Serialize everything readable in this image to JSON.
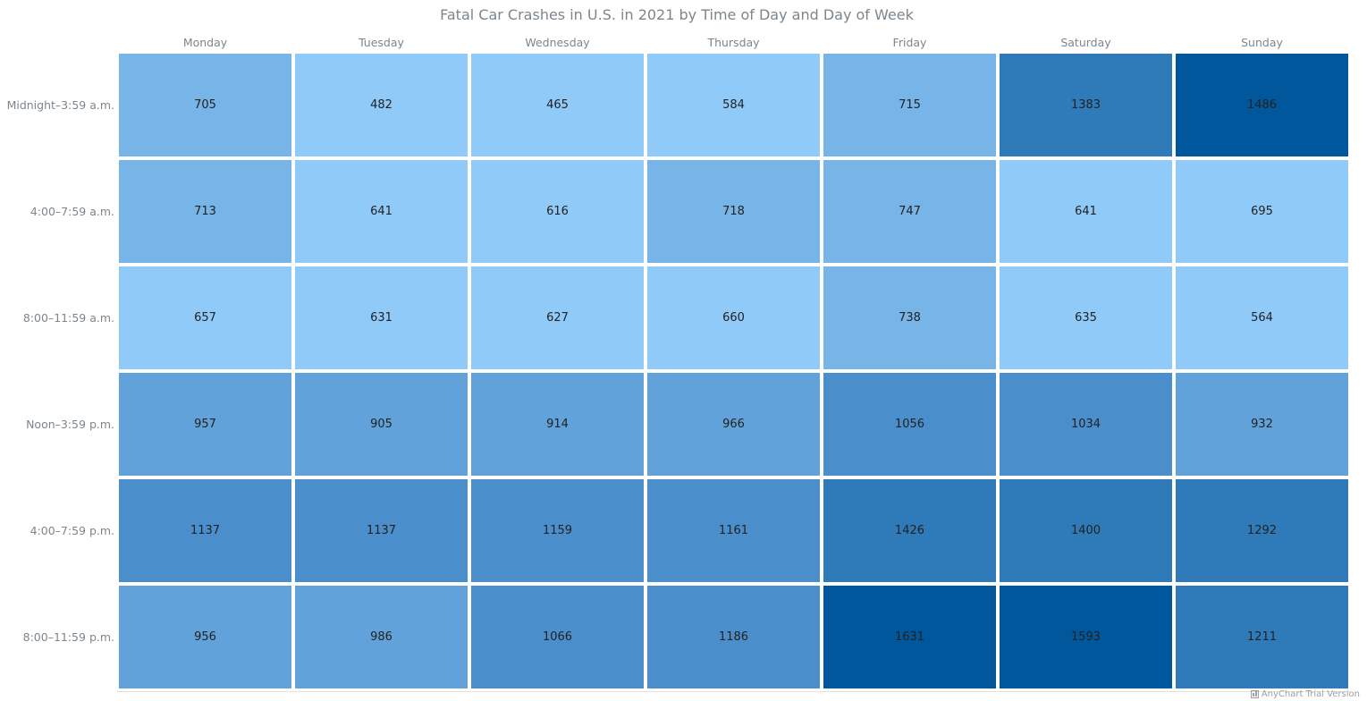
{
  "chart_data": {
    "type": "heatmap",
    "title": "Fatal Car Crashes in U.S. in 2021 by Time of Day and Day of Week",
    "columns": [
      "Monday",
      "Tuesday",
      "Wednesday",
      "Thursday",
      "Friday",
      "Saturday",
      "Sunday"
    ],
    "rows": [
      "Midnight–3:59 a.m.",
      "4:00–7:59 a.m.",
      "8:00–11:59 a.m.",
      "Noon–3:59 p.m.",
      "4:00–7:59 p.m.",
      "8:00–11:59 p.m."
    ],
    "values": [
      [
        705,
        482,
        465,
        584,
        715,
        1383,
        1486
      ],
      [
        713,
        641,
        616,
        718,
        747,
        641,
        695
      ],
      [
        657,
        631,
        627,
        660,
        738,
        635,
        564
      ],
      [
        957,
        905,
        914,
        966,
        1056,
        1034,
        932
      ],
      [
        1137,
        1137,
        1159,
        1161,
        1426,
        1400,
        1292
      ],
      [
        956,
        986,
        1066,
        1186,
        1631,
        1593,
        1211
      ]
    ],
    "color_scale": [
      {
        "from": 0,
        "to": 700,
        "color": "#90caf9"
      },
      {
        "from": 700,
        "to": 900,
        "color": "#77b4e8"
      },
      {
        "from": 900,
        "to": 1000,
        "color": "#60a2d9"
      },
      {
        "from": 1000,
        "to": 1200,
        "color": "#4a8fcb"
      },
      {
        "from": 1200,
        "to": 1450,
        "color": "#2f7bb9"
      },
      {
        "from": 1450,
        "to": 2000,
        "color": "#01579b"
      }
    ],
    "legend": "none",
    "grid": false
  },
  "credits": {
    "text": "AnyChart Trial Version"
  }
}
